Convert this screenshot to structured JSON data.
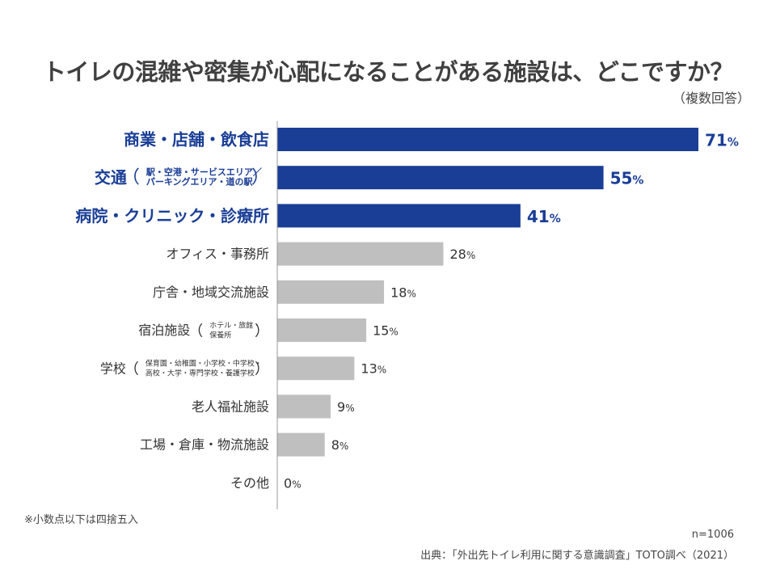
{
  "title": "トイレの混雑や密集が心配になることがある施設は、どこですか？",
  "subtitle": "（複数回答）",
  "note": "※小数点以下は四捨五入",
  "sample_size": "n=1006",
  "source": "出典：「外出先トイレ利用に関する意識調査」TOTO調べ（2021）",
  "colors": {
    "highlight": "#1a3e96",
    "normal": "#bfbfbf",
    "highlight_text": "#1a3e96",
    "normal_text": "#333333",
    "axis": "#999999"
  },
  "chart_data": {
    "type": "bar",
    "orientation": "horizontal",
    "title": "トイレの混雑や密集が心配になることがある施設は、どこですか？",
    "xlabel": "",
    "ylabel": "",
    "unit": "%",
    "xlim": [
      0,
      75
    ],
    "grid": false,
    "categories": [
      {
        "label": "商業・店舗・飲食店",
        "detail": [],
        "value": 71,
        "highlight": true
      },
      {
        "label": "交通",
        "detail": [
          "駅・空港・サービスエリア／",
          "パーキングエリア・道の駅"
        ],
        "value": 55,
        "highlight": true
      },
      {
        "label": "病院・クリニック・診療所",
        "detail": [],
        "value": 41,
        "highlight": true
      },
      {
        "label": "オフィス・事務所",
        "detail": [],
        "value": 28,
        "highlight": false
      },
      {
        "label": "庁舎・地域交流施設",
        "detail": [],
        "value": 18,
        "highlight": false
      },
      {
        "label": "宿泊施設",
        "detail": [
          "ホテル・旅館・",
          "保養所"
        ],
        "value": 15,
        "highlight": false
      },
      {
        "label": "学校",
        "detail": [
          "保育園・幼稚園・小学校・中学校・",
          "高校・大学・専門学校・養護学校"
        ],
        "value": 13,
        "highlight": false
      },
      {
        "label": "老人福祉施設",
        "detail": [],
        "value": 9,
        "highlight": false
      },
      {
        "label": "工場・倉庫・物流施設",
        "detail": [],
        "value": 8,
        "highlight": false
      },
      {
        "label": "その他",
        "detail": [],
        "value": 0,
        "highlight": false
      }
    ]
  }
}
